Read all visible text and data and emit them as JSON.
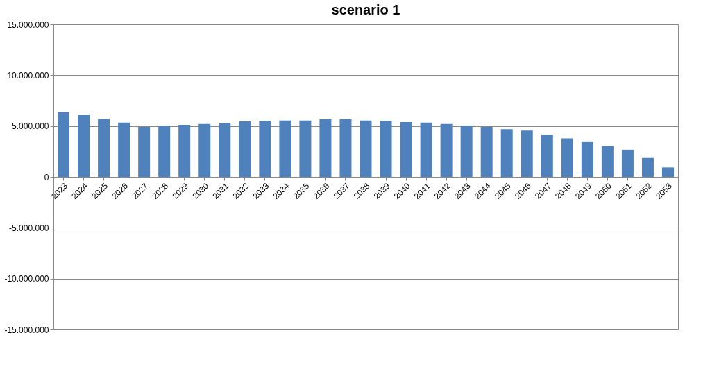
{
  "chart_data": {
    "type": "bar",
    "title": "scenario 1",
    "categories": [
      "2023",
      "2024",
      "2025",
      "2026",
      "2027",
      "2028",
      "2029",
      "2030",
      "2031",
      "2032",
      "2033",
      "2034",
      "2035",
      "2036",
      "2037",
      "2038",
      "2039",
      "2040",
      "2041",
      "2042",
      "2043",
      "2044",
      "2045",
      "2046",
      "2047",
      "2048",
      "2049",
      "2050",
      "2051",
      "2052",
      "2053"
    ],
    "values": [
      6360000,
      6060000,
      5700000,
      5340000,
      4910000,
      5020000,
      5110000,
      5200000,
      5290000,
      5450000,
      5500000,
      5540000,
      5540000,
      5660000,
      5660000,
      5540000,
      5500000,
      5380000,
      5340000,
      5200000,
      5050000,
      4910000,
      4680000,
      4550000,
      4140000,
      3780000,
      3420000,
      3030000,
      2670000,
      1860000,
      930000
    ],
    "color": "#4f81bd",
    "ylim": [
      -15000000,
      15000000
    ],
    "yticks": [
      {
        "value": -15000000,
        "label": "-15.000.000"
      },
      {
        "value": -10000000,
        "label": "-10.000.000"
      },
      {
        "value": -5000000,
        "label": "-5.000.000"
      },
      {
        "value": 0,
        "label": "0"
      },
      {
        "value": 5000000,
        "label": "5.000.000"
      },
      {
        "value": 10000000,
        "label": "10.000.000"
      },
      {
        "value": 15000000,
        "label": "15.000.000"
      }
    ],
    "grid": "y"
  }
}
